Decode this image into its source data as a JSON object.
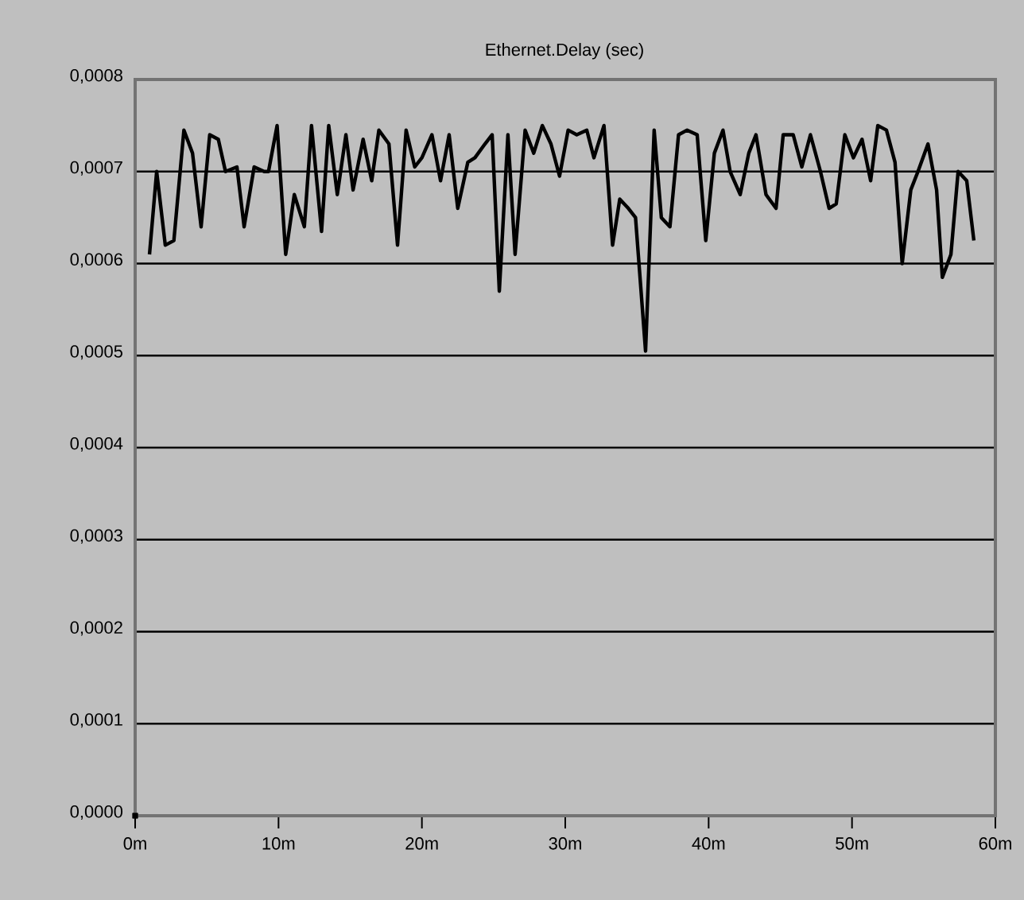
{
  "chart_data": {
    "type": "line",
    "title": "Ethernet.Delay (sec)",
    "xlim": [
      0,
      60
    ],
    "ylim": [
      0,
      0.0008
    ],
    "xticks": [
      {
        "value": 0,
        "label": "0m"
      },
      {
        "value": 10,
        "label": "10m"
      },
      {
        "value": 20,
        "label": "20m"
      },
      {
        "value": 30,
        "label": "30m"
      },
      {
        "value": 40,
        "label": "40m"
      },
      {
        "value": 50,
        "label": "50m"
      },
      {
        "value": 60,
        "label": "60m"
      }
    ],
    "yticks": [
      {
        "value": 0,
        "label": "0,0000"
      },
      {
        "value": 0.0001,
        "label": "0,0001"
      },
      {
        "value": 0.0002,
        "label": "0,0002"
      },
      {
        "value": 0.0003,
        "label": "0,0003"
      },
      {
        "value": 0.0004,
        "label": "0,0004"
      },
      {
        "value": 0.0005,
        "label": "0,0005"
      },
      {
        "value": 0.0006,
        "label": "0,0006"
      },
      {
        "value": 0.0007,
        "label": "0,0007"
      },
      {
        "value": 0.0008,
        "label": "0,0008"
      }
    ],
    "grid": "y",
    "marker": "none",
    "line_style": "solid",
    "series": [
      {
        "color": "#000000",
        "x": [
          1.0,
          1.5,
          2.1,
          2.7,
          3.4,
          4.0,
          4.6,
          5.2,
          5.8,
          6.3,
          7.1,
          7.6,
          8.3,
          9.0,
          9.3,
          9.9,
          10.5,
          11.1,
          11.8,
          12.3,
          13.0,
          13.5,
          14.1,
          14.7,
          15.2,
          15.9,
          16.5,
          17.0,
          17.7,
          18.3,
          18.9,
          19.5,
          20.0,
          20.7,
          21.3,
          21.9,
          22.5,
          23.2,
          23.7,
          24.4,
          24.9,
          25.4,
          26.0,
          26.5,
          27.2,
          27.8,
          28.4,
          29.0,
          29.6,
          30.2,
          30.8,
          31.5,
          32.0,
          32.7,
          33.3,
          33.8,
          34.4,
          34.9,
          35.6,
          36.2,
          36.7,
          37.3,
          37.9,
          38.5,
          39.2,
          39.8,
          40.4,
          41.0,
          41.5,
          42.2,
          42.8,
          43.3,
          44.0,
          44.7,
          45.2,
          45.9,
          46.5,
          47.1,
          47.8,
          48.4,
          48.9,
          49.5,
          50.1,
          50.7,
          51.3,
          51.8,
          52.4,
          53.0,
          53.5,
          54.1,
          54.6,
          55.3,
          55.9,
          56.3,
          56.9,
          57.4,
          58.0,
          58.5
        ],
        "values": [
          0.00061,
          0.0007,
          0.00062,
          0.000625,
          0.000745,
          0.00072,
          0.00064,
          0.00074,
          0.000735,
          0.0007,
          0.000705,
          0.00064,
          0.000705,
          0.0007,
          0.0007,
          0.00075,
          0.00061,
          0.000675,
          0.00064,
          0.00075,
          0.000635,
          0.00075,
          0.000675,
          0.00074,
          0.00068,
          0.000735,
          0.00069,
          0.000745,
          0.00073,
          0.00062,
          0.000745,
          0.000705,
          0.000715,
          0.00074,
          0.00069,
          0.00074,
          0.00066,
          0.00071,
          0.000715,
          0.00073,
          0.00074,
          0.00057,
          0.00074,
          0.00061,
          0.000745,
          0.00072,
          0.00075,
          0.00073,
          0.000695,
          0.000745,
          0.00074,
          0.000745,
          0.000715,
          0.00075,
          0.00062,
          0.00067,
          0.00066,
          0.00065,
          0.000505,
          0.000745,
          0.00065,
          0.00064,
          0.00074,
          0.000745,
          0.00074,
          0.000625,
          0.00072,
          0.000745,
          0.0007,
          0.000675,
          0.00072,
          0.00074,
          0.000675,
          0.00066,
          0.00074,
          0.00074,
          0.000705,
          0.00074,
          0.0007,
          0.00066,
          0.000665,
          0.00074,
          0.000715,
          0.000735,
          0.00069,
          0.00075,
          0.000745,
          0.00071,
          0.0006,
          0.00068,
          0.0007,
          0.00073,
          0.00068,
          0.000585,
          0.00061,
          0.0007,
          0.00069,
          0.000625
        ]
      },
      {
        "type": "scatter",
        "marker": "square",
        "color": "#000000",
        "x": [
          0
        ],
        "values": [
          0
        ]
      }
    ]
  }
}
